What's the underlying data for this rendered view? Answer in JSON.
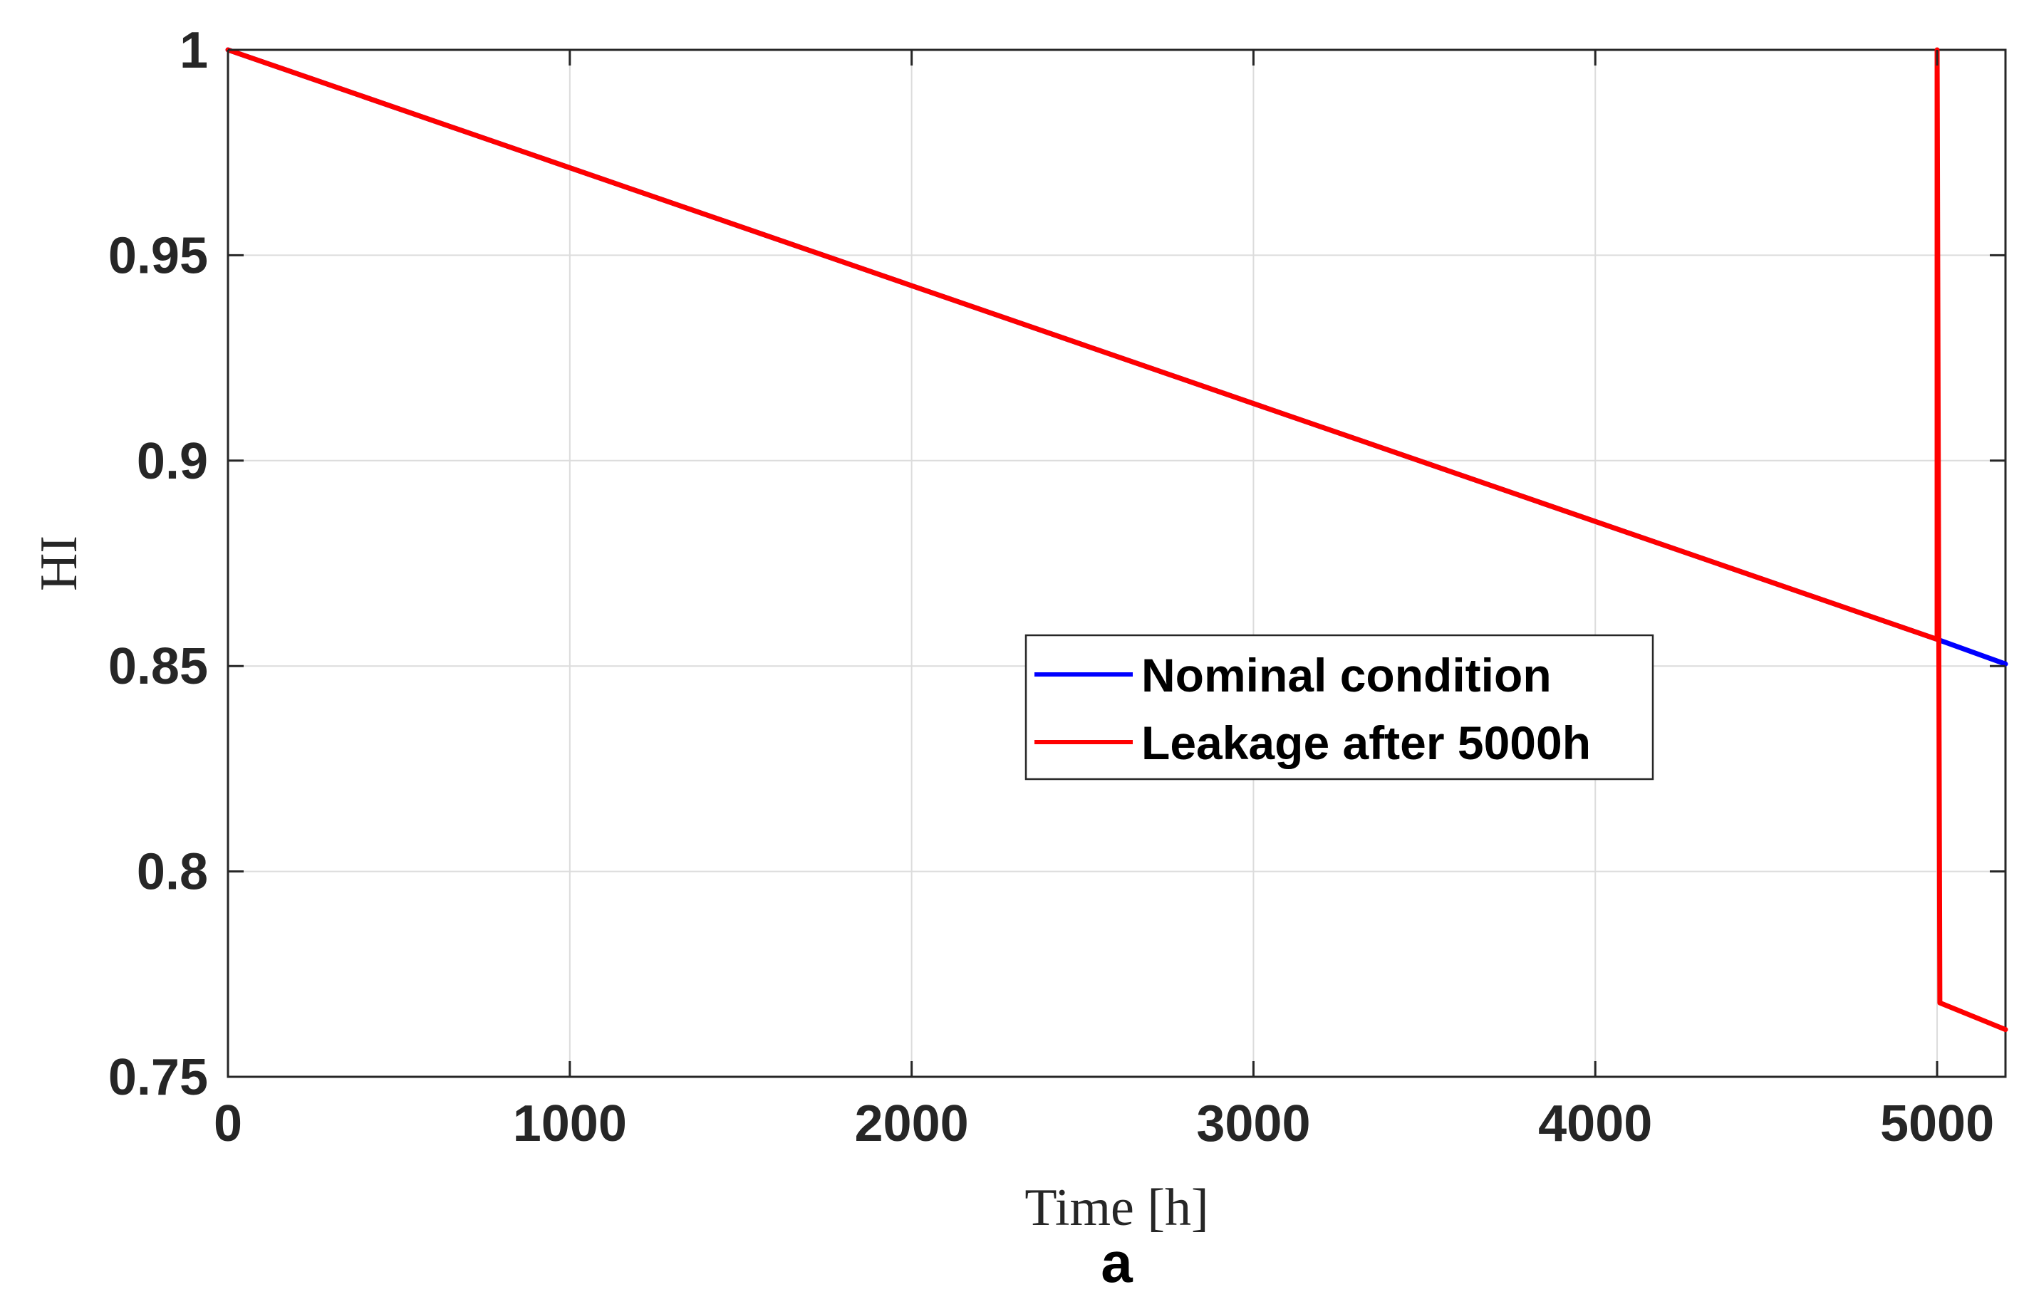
{
  "chart_data": {
    "type": "line",
    "xlabel": "Time [h]",
    "ylabel": "HI",
    "panel_label": "a",
    "xlim": [
      0,
      5200
    ],
    "ylim": [
      0.75,
      1
    ],
    "xticks": [
      0,
      1000,
      2000,
      3000,
      4000,
      5000
    ],
    "xtick_labels": [
      "0",
      "1000",
      "2000",
      "3000",
      "4000",
      "5000"
    ],
    "yticks": [
      0.75,
      0.8,
      0.85,
      0.9,
      0.95,
      1
    ],
    "ytick_labels": [
      "0.75",
      "0.8",
      "0.85",
      "0.9",
      "0.95",
      "1"
    ],
    "grid": true,
    "legend_position": "center-right",
    "series": [
      {
        "name": "Nominal condition",
        "color": "#0000ff",
        "x": [
          0,
          5000,
          5200
        ],
        "y": [
          1.0,
          0.8565,
          0.8505
        ]
      },
      {
        "name": "Leakage after 5000h",
        "color": "#ff0000",
        "x": [
          0,
          5000,
          5000,
          5008,
          5200
        ],
        "y": [
          1.0,
          0.8565,
          1.0,
          0.768,
          0.7615
        ]
      }
    ]
  }
}
